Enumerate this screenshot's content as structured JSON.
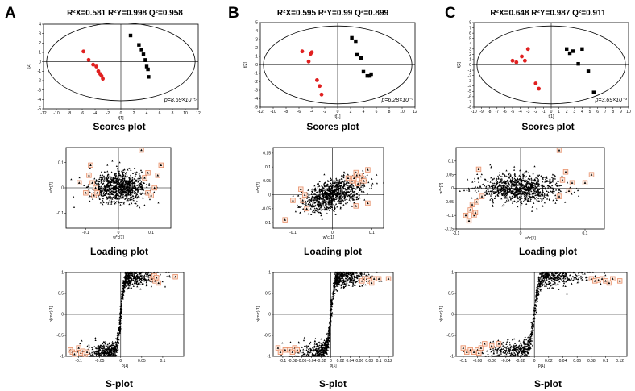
{
  "panels": [
    {
      "letter": "A",
      "stats": "R²X=0.581  R²Y=0.998  Q²=0.958",
      "p_value": "p=8.69×10⁻⁵",
      "captions": [
        "Scores plot",
        "Loading plot",
        "S-plot"
      ]
    },
    {
      "letter": "B",
      "stats": "R²X=0.595  R²Y=0.99  Q²=0.899",
      "p_value": "p=6.28×10⁻³",
      "captions": [
        "Scores plot",
        "Loading plot",
        "S-plot"
      ]
    },
    {
      "letter": "C",
      "stats": "R²X=0.648  R²Y=0.987  Q²=0.911",
      "p_value": "p=3.69×10⁻³",
      "captions": [
        "Scores plot",
        "Loading plot",
        "S-plot"
      ]
    }
  ],
  "colors": {
    "group1": "#e02020",
    "group2": "#000000",
    "highlight": "#e8906a",
    "highlight_fill": "#fde8dc"
  },
  "chart_data": [
    {
      "panel": "A",
      "type": "scatter",
      "title": "Scores plot",
      "xlabel": "t[1]",
      "ylabel": "t[2]",
      "xlim": [
        -12,
        12
      ],
      "ylim": [
        -5,
        4
      ],
      "xticks": [
        -12,
        -10,
        -8,
        -6,
        -4,
        -2,
        0,
        2,
        4,
        6,
        8,
        10,
        12
      ],
      "yticks": [
        -5,
        -4,
        -3,
        -2,
        -1,
        0,
        1,
        2,
        3,
        4
      ],
      "series": [
        {
          "name": "group1",
          "marker": "circle",
          "x": [
            -5.8,
            -5.0,
            -4.3,
            -3.8,
            -3.5,
            -3.2,
            -3.0,
            -2.8
          ],
          "y": [
            1.1,
            0.2,
            -0.3,
            -0.5,
            -1.0,
            -1.3,
            -1.5,
            -1.8
          ]
        },
        {
          "name": "group2",
          "marker": "square",
          "x": [
            1.5,
            2.8,
            3.2,
            3.5,
            3.8,
            4.0,
            4.2,
            4.3
          ],
          "y": [
            2.8,
            1.8,
            1.3,
            0.8,
            0.2,
            -0.5,
            -0.8,
            -1.6
          ]
        }
      ]
    },
    {
      "panel": "A",
      "type": "scatter",
      "title": "Loading plot",
      "xlabel": "w*c[1]",
      "ylabel": "w*c[2]",
      "xlim": [
        -0.16,
        0.16
      ],
      "ylim": [
        -0.16,
        0.16
      ],
      "xticks": [
        -0.1,
        0,
        0.1
      ],
      "yticks": [
        -0.1,
        0,
        0.1
      ],
      "highlighted": {
        "x": [
          -0.12,
          -0.1,
          -0.09,
          -0.085,
          -0.08,
          -0.075,
          -0.07,
          -0.065,
          0.07,
          0.08,
          0.09,
          0.11,
          0.12,
          0.13,
          0.09,
          0.1
        ],
        "y": [
          0.02,
          -0.02,
          0.05,
          0.09,
          0.02,
          -0.03,
          0.0,
          -0.02,
          0.15,
          0.04,
          -0.02,
          0.0,
          0.05,
          0.09,
          0.06,
          -0.03
        ]
      }
    },
    {
      "panel": "A",
      "type": "scatter",
      "title": "S-plot",
      "xlabel": "p[1]",
      "ylabel": "p(corr)[1]",
      "xlim": [
        -0.13,
        0.15
      ],
      "ylim": [
        -1.0,
        1.0
      ],
      "xticks": [
        -0.1,
        -0.05,
        0,
        0.05,
        0.1
      ],
      "yticks": [
        -1.0,
        -0.5,
        0,
        0.5,
        1.0
      ],
      "highlighted": {
        "x": [
          -0.12,
          -0.115,
          -0.11,
          -0.1,
          -0.095,
          -0.09,
          -0.085,
          -0.08,
          0.075,
          0.08,
          0.082,
          0.085,
          0.09,
          0.13
        ],
        "y": [
          -0.85,
          -0.9,
          -0.95,
          -0.8,
          -0.92,
          -0.88,
          -0.95,
          -0.9,
          0.85,
          0.92,
          0.8,
          0.88,
          0.75,
          0.9
        ]
      }
    },
    {
      "panel": "B",
      "type": "scatter",
      "title": "Scores plot",
      "xlabel": "t[1]",
      "ylabel": "t[2]",
      "xlim": [
        -12,
        12
      ],
      "ylim": [
        -5,
        5
      ],
      "xticks": [
        -12,
        -10,
        -8,
        -6,
        -4,
        -2,
        0,
        2,
        4,
        6,
        8,
        10,
        12
      ],
      "yticks": [
        -5,
        -4,
        -3,
        -2,
        -1,
        0,
        1,
        2,
        3,
        4,
        5
      ],
      "series": [
        {
          "name": "group1",
          "marker": "circle",
          "x": [
            -5.5,
            -4.5,
            -4.2,
            -4.0,
            -3.2,
            -2.8,
            -2.5
          ],
          "y": [
            1.6,
            0.4,
            1.3,
            1.5,
            -1.8,
            -2.5,
            -3.5
          ]
        },
        {
          "name": "group2",
          "marker": "square",
          "x": [
            2.2,
            2.8,
            3.0,
            3.6,
            4.0,
            4.6,
            5.0,
            5.2
          ],
          "y": [
            3.2,
            2.8,
            1.2,
            0.8,
            -0.8,
            -1.3,
            -1.3,
            -1.1
          ]
        }
      ]
    },
    {
      "panel": "B",
      "type": "scatter",
      "title": "Loading plot",
      "xlabel": "w*c[1]",
      "ylabel": "w*c[2]",
      "xlim": [
        -0.15,
        0.13
      ],
      "ylim": [
        -0.12,
        0.17
      ],
      "xticks": [
        -0.1,
        0,
        0.1
      ],
      "yticks": [
        -0.1,
        -0.05,
        0,
        0.05,
        0.1,
        0.15
      ],
      "highlighted": {
        "x": [
          -0.12,
          -0.1,
          -0.08,
          -0.075,
          -0.07,
          -0.065,
          0.04,
          0.05,
          0.055,
          0.06,
          0.062,
          0.065,
          0.07,
          0.075,
          0.08,
          0.09,
          0.09,
          0.06
        ],
        "y": [
          -0.09,
          -0.02,
          0.02,
          -0.02,
          0.0,
          -0.05,
          0.06,
          0.05,
          0.06,
          0.08,
          0.07,
          0.04,
          0.07,
          0.06,
          0.05,
          0.09,
          -0.03,
          -0.04
        ]
      }
    },
    {
      "panel": "B",
      "type": "scatter",
      "title": "S-plot",
      "xlabel": "p[1]",
      "ylabel": "p(corr)[1]",
      "xlim": [
        -0.12,
        0.13
      ],
      "ylim": [
        -1.0,
        1.0
      ],
      "xticks": [
        -0.1,
        -0.08,
        -0.06,
        -0.04,
        -0.02,
        0,
        0.02,
        0.04,
        0.06,
        0.08,
        0.1,
        0.12
      ],
      "yticks": [
        -1.0,
        -0.5,
        0,
        0.5,
        1.0
      ],
      "highlighted": {
        "x": [
          -0.11,
          -0.105,
          -0.095,
          -0.085,
          -0.08,
          -0.075,
          -0.07,
          0.065,
          0.07,
          0.075,
          0.08,
          0.085,
          0.09,
          0.1,
          0.12
        ],
        "y": [
          -0.8,
          -0.9,
          -0.85,
          -0.85,
          -0.9,
          -0.8,
          -0.85,
          0.8,
          0.85,
          0.85,
          0.8,
          0.75,
          0.85,
          0.85,
          0.85
        ]
      }
    },
    {
      "panel": "C",
      "type": "scatter",
      "title": "Scores plot",
      "xlabel": "t[1]",
      "ylabel": "t[2]",
      "xlim": [
        -10,
        10
      ],
      "ylim": [
        -8,
        8
      ],
      "xticks": [
        -10,
        -9,
        -8,
        -7,
        -6,
        -5,
        -4,
        -3,
        -2,
        -1,
        0,
        1,
        2,
        3,
        4,
        5,
        6,
        7,
        8,
        9,
        10
      ],
      "yticks": [
        -8,
        -7,
        -6,
        -5,
        -4,
        -3,
        -2,
        -1,
        0,
        1,
        2,
        3,
        4,
        5,
        6,
        7,
        8
      ],
      "series": [
        {
          "name": "group1",
          "marker": "circle",
          "x": [
            -5.0,
            -4.5,
            -3.8,
            -3.4,
            -3.0,
            -2.0,
            -1.6
          ],
          "y": [
            0.8,
            0.5,
            1.6,
            0.8,
            3.0,
            -3.5,
            -4.5
          ]
        },
        {
          "name": "group2",
          "marker": "square",
          "x": [
            2.0,
            2.4,
            2.8,
            3.5,
            4.0,
            4.8,
            5.5
          ],
          "y": [
            3.0,
            2.2,
            2.6,
            0.2,
            3.0,
            -1.2,
            -5.2
          ]
        }
      ]
    },
    {
      "panel": "C",
      "type": "scatter",
      "title": "Loading plot",
      "xlabel": "w*c[1]",
      "ylabel": "w*c[2]",
      "xlim": [
        -0.1,
        0.13
      ],
      "ylim": [
        -0.15,
        0.15
      ],
      "xticks": [
        -0.1,
        0,
        0.1
      ],
      "yticks": [
        -0.15,
        -0.1,
        -0.05,
        0,
        0.05,
        0.1
      ],
      "highlighted": {
        "x": [
          -0.085,
          -0.08,
          -0.078,
          -0.075,
          -0.072,
          -0.07,
          -0.068,
          -0.065,
          -0.06,
          0.06,
          0.065,
          0.07,
          0.075,
          0.08,
          0.1,
          0.11,
          0.06
        ],
        "y": [
          -0.1,
          -0.12,
          -0.08,
          -0.06,
          -0.1,
          -0.09,
          -0.05,
          0.07,
          -0.03,
          0.14,
          0.03,
          0.06,
          -0.01,
          0.02,
          0.02,
          0.05,
          -0.03
        ]
      }
    },
    {
      "panel": "C",
      "type": "scatter",
      "title": "S-plot",
      "xlabel": "p[1]",
      "ylabel": "p(corr)[1]",
      "xlim": [
        -0.11,
        0.13
      ],
      "ylim": [
        -1.0,
        1.0
      ],
      "xticks": [
        -0.1,
        -0.08,
        -0.06,
        -0.04,
        -0.02,
        0,
        0.02,
        0.04,
        0.06,
        0.08,
        0.1,
        0.12
      ],
      "yticks": [
        -1.0,
        -0.5,
        0,
        0.5,
        1.0
      ],
      "highlighted": {
        "x": [
          -0.1,
          -0.095,
          -0.09,
          -0.085,
          -0.08,
          -0.078,
          -0.075,
          -0.07,
          -0.06,
          -0.05,
          0.08,
          0.085,
          0.09,
          0.095,
          0.1,
          0.105,
          0.11,
          0.12
        ],
        "y": [
          -0.8,
          -0.9,
          -0.85,
          -0.9,
          -0.85,
          -0.92,
          -0.8,
          -0.7,
          -0.75,
          -0.7,
          0.85,
          0.8,
          0.82,
          0.85,
          0.8,
          0.75,
          0.85,
          0.8
        ]
      }
    }
  ]
}
